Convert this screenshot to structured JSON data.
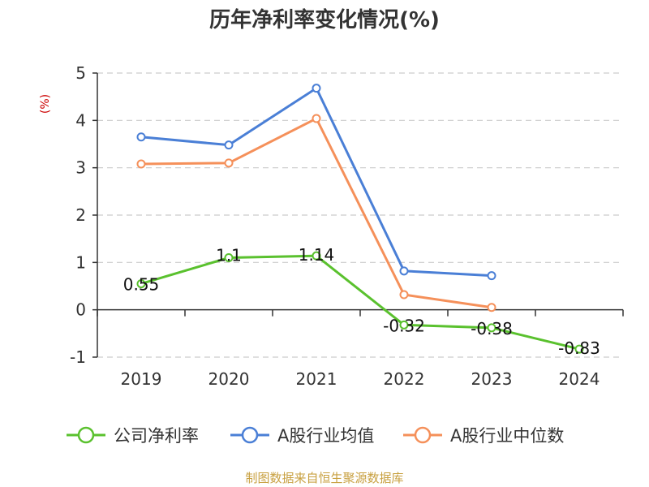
{
  "chart_data": {
    "type": "line",
    "title": "历年净利率变化情况(%)",
    "unit_label": "(%)",
    "categories": [
      "2019",
      "2020",
      "2021",
      "2022",
      "2023",
      "2024"
    ],
    "ylim": [
      -1,
      5
    ],
    "yticks": [
      -1,
      0,
      1,
      2,
      3,
      4,
      5
    ],
    "grid": true,
    "legend_position": "bottom",
    "series": [
      {
        "name": "公司净利率",
        "color": "#5ac12e",
        "values": [
          0.55,
          1.1,
          1.14,
          -0.32,
          -0.38,
          -0.83
        ],
        "labels": [
          "0.55",
          "1.1",
          "1.14",
          "-0.32",
          "-0.38",
          "-0.83"
        ]
      },
      {
        "name": "A股行业均值",
        "color": "#4a7fd6",
        "values": [
          3.65,
          3.48,
          4.68,
          0.82,
          0.72,
          null
        ]
      },
      {
        "name": "A股行业中位数",
        "color": "#f5905a",
        "values": [
          3.08,
          3.1,
          4.04,
          0.32,
          0.05,
          null
        ]
      }
    ],
    "source": "制图数据来自恒生聚源数据库"
  }
}
